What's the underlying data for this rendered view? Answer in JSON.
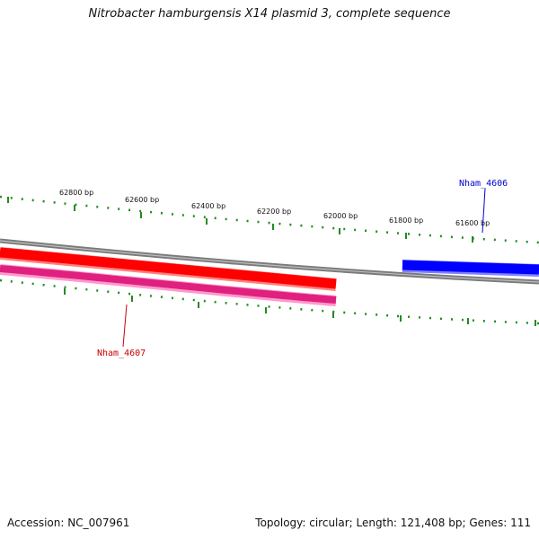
{
  "title": "Nitrobacter hamburgensis X14 plasmid 3, complete sequence",
  "footer": {
    "accession": "Accession: NC_007961",
    "summary": "Topology: circular; Length: 121,408 bp; Genes: 111"
  },
  "scale": {
    "tick_labels": [
      "62800 bp",
      "62600 bp",
      "62400 bp",
      "62200 bp",
      "62000 bp",
      "61800 bp",
      "61600 bp"
    ]
  },
  "genes": [
    {
      "name": "Nham_4606",
      "color": "#0000cc",
      "strand": "forward"
    },
    {
      "name": "Nham_4607",
      "color": "#cc0000",
      "strand": "reverse"
    }
  ],
  "colors": {
    "backbone": "#808080",
    "ticks": "#228b22",
    "forward_gene": "#0000ff",
    "reverse_gene": "#ff0000",
    "reverse_gene_shadow": "#ff3399"
  }
}
